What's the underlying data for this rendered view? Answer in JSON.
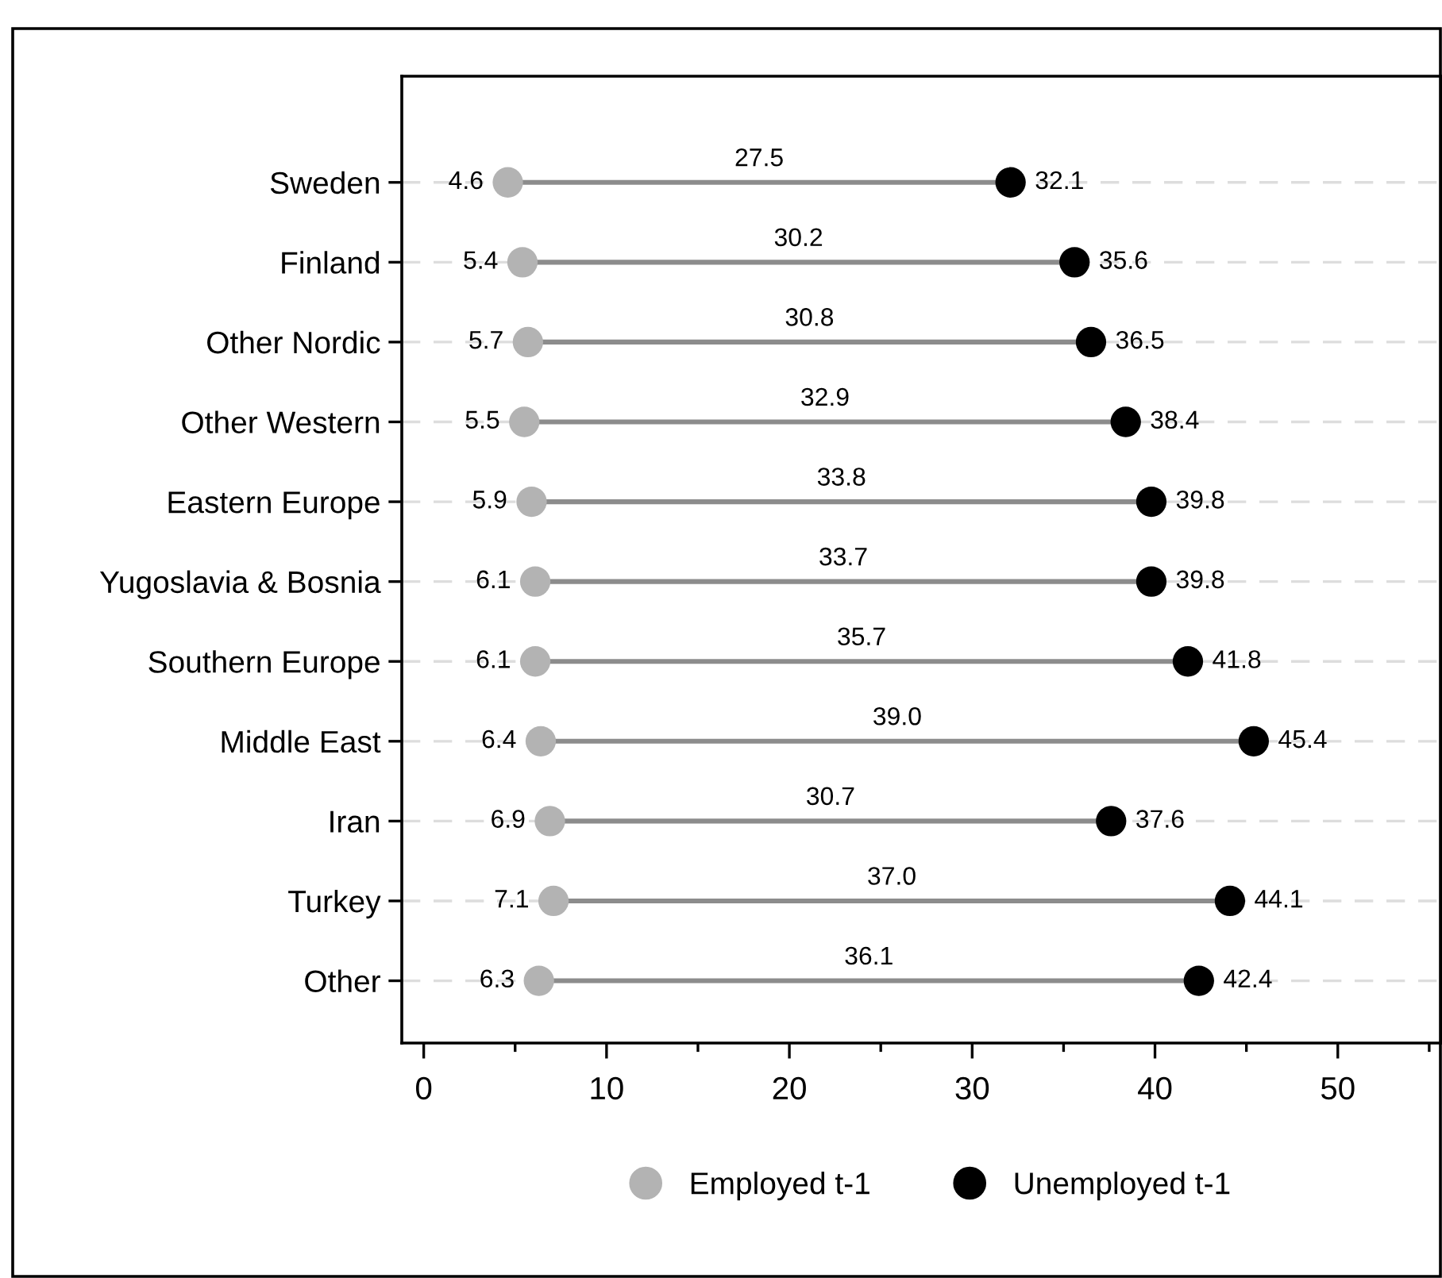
{
  "chart_data": {
    "type": "lollipop",
    "orientation": "horizontal",
    "categories": [
      "Sweden",
      "Finland",
      "Other Nordic",
      "Other Western",
      "Eastern Europe",
      "Yugoslavia & Bosnia",
      "Southern Europe",
      "Middle East",
      "Iran",
      "Turkey",
      "Other"
    ],
    "series": [
      {
        "name": "Employed t-1",
        "color": "#b3b3b3",
        "values": [
          4.6,
          5.4,
          5.7,
          5.5,
          5.9,
          6.1,
          6.1,
          6.4,
          6.9,
          7.1,
          6.3
        ]
      },
      {
        "name": "Unemployed t-1",
        "color": "#000000",
        "values": [
          32.1,
          35.6,
          36.5,
          38.4,
          39.8,
          39.8,
          41.8,
          45.4,
          37.6,
          44.1,
          42.4
        ]
      }
    ],
    "annotations": [
      "27.5",
      "30.2",
      "30.8",
      "32.9",
      "33.8",
      "33.7",
      "35.7",
      "39.0",
      "30.7",
      "37.0",
      "36.1"
    ],
    "xlim": [
      -1.2,
      55.7
    ],
    "xticks": [
      0,
      10,
      20,
      30,
      40,
      50
    ],
    "data_labels": true,
    "grid": "y",
    "legend": "bottom",
    "marker": "circle"
  }
}
